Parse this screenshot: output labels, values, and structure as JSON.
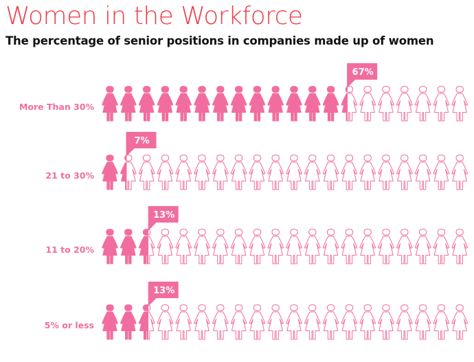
{
  "title": "Women in the Workforce",
  "subtitle": "The percentage of senior positions in companies made up of women",
  "colors": {
    "accent": "#f26d9f",
    "title": "#ee3d4a",
    "outline": "#f26d9f",
    "callout_text": "#ffffff",
    "subtitle": "#111111"
  },
  "chart_data": {
    "type": "pictograph",
    "icon": "woman-figure-icon",
    "icons_per_row": 20,
    "categories": [
      "More Than 30%",
      "21 to 30%",
      "11 to 20%",
      "5% or less"
    ],
    "values": [
      67,
      7,
      13,
      13
    ],
    "value_labels": [
      "67%",
      "7%",
      "13%",
      "13%"
    ],
    "title": "Women in the Workforce",
    "subtitle": "The percentage of senior positions in companies made up of women"
  }
}
